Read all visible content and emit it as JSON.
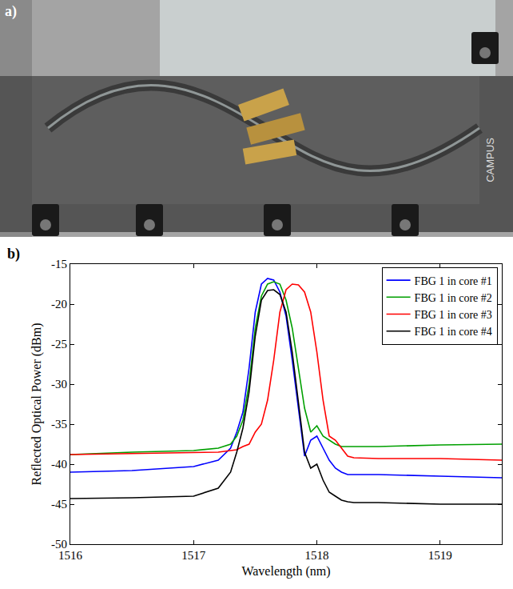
{
  "photo": {
    "label": "a)",
    "texts": [
      "CAMPUS"
    ]
  },
  "chart_data": {
    "type": "line",
    "panel_label": "b)",
    "x_label": "Wavelength (nm)",
    "y_label": "Reflected Optical Power (dBm)",
    "xlim": [
      1516,
      1519.5
    ],
    "xticks": [
      1516,
      1517,
      1518,
      1519
    ],
    "ylim": [
      -50,
      -15
    ],
    "yticks": [
      -50,
      -45,
      -40,
      -35,
      -30,
      -25,
      -20,
      -15
    ],
    "grid": false,
    "legend": "top-right",
    "x": [
      1516,
      1516.5,
      1517,
      1517.2,
      1517.3,
      1517.35,
      1517.4,
      1517.45,
      1517.5,
      1517.55,
      1517.6,
      1517.65,
      1517.7,
      1517.75,
      1517.8,
      1517.85,
      1517.9,
      1517.95,
      1518,
      1518.05,
      1518.1,
      1518.15,
      1518.2,
      1518.25,
      1518.3,
      1518.5,
      1519,
      1519.5
    ],
    "series": [
      {
        "name": "FBG 1 in core #1",
        "color": "#0000ff",
        "values": [
          -41,
          -40.8,
          -40.3,
          -39.5,
          -38,
          -36,
          -33.5,
          -28,
          -21,
          -17.5,
          -16.8,
          -17,
          -18.5,
          -21.5,
          -27,
          -33,
          -39,
          -37,
          -36.5,
          -38,
          -39.5,
          -40.5,
          -41,
          -41.3,
          -41.3,
          -41.3,
          -41.5,
          -41.7
        ]
      },
      {
        "name": "FBG 1 in core #2",
        "color": "#00a000",
        "values": [
          -38.8,
          -38.5,
          -38.3,
          -38,
          -37.5,
          -36.5,
          -34.5,
          -30,
          -23,
          -19,
          -17.5,
          -17.2,
          -17.5,
          -19.5,
          -23,
          -28,
          -33,
          -36,
          -35.2,
          -36.5,
          -37,
          -37.5,
          -37.8,
          -37.8,
          -37.8,
          -37.8,
          -37.6,
          -37.5
        ]
      },
      {
        "name": "FBG 1 in core #3",
        "color": "#ff0000",
        "values": [
          -38.8,
          -38.7,
          -38.6,
          -38.5,
          -38.3,
          -38.2,
          -37.8,
          -37.5,
          -36,
          -35,
          -32,
          -27,
          -21,
          -18.2,
          -17.5,
          -17.6,
          -18.5,
          -21,
          -26,
          -32,
          -36.5,
          -37,
          -38,
          -39,
          -39.2,
          -39.3,
          -39.3,
          -39.5
        ]
      },
      {
        "name": "FBG 1 in core #4",
        "color": "#000000",
        "values": [
          -44.3,
          -44.2,
          -44,
          -43,
          -41,
          -38.5,
          -35.5,
          -31,
          -24,
          -19.5,
          -18.3,
          -18.2,
          -18.8,
          -21,
          -26,
          -32,
          -38.5,
          -40.5,
          -40,
          -42,
          -43.5,
          -44,
          -44.5,
          -44.7,
          -44.8,
          -44.8,
          -45,
          -45
        ]
      }
    ]
  }
}
